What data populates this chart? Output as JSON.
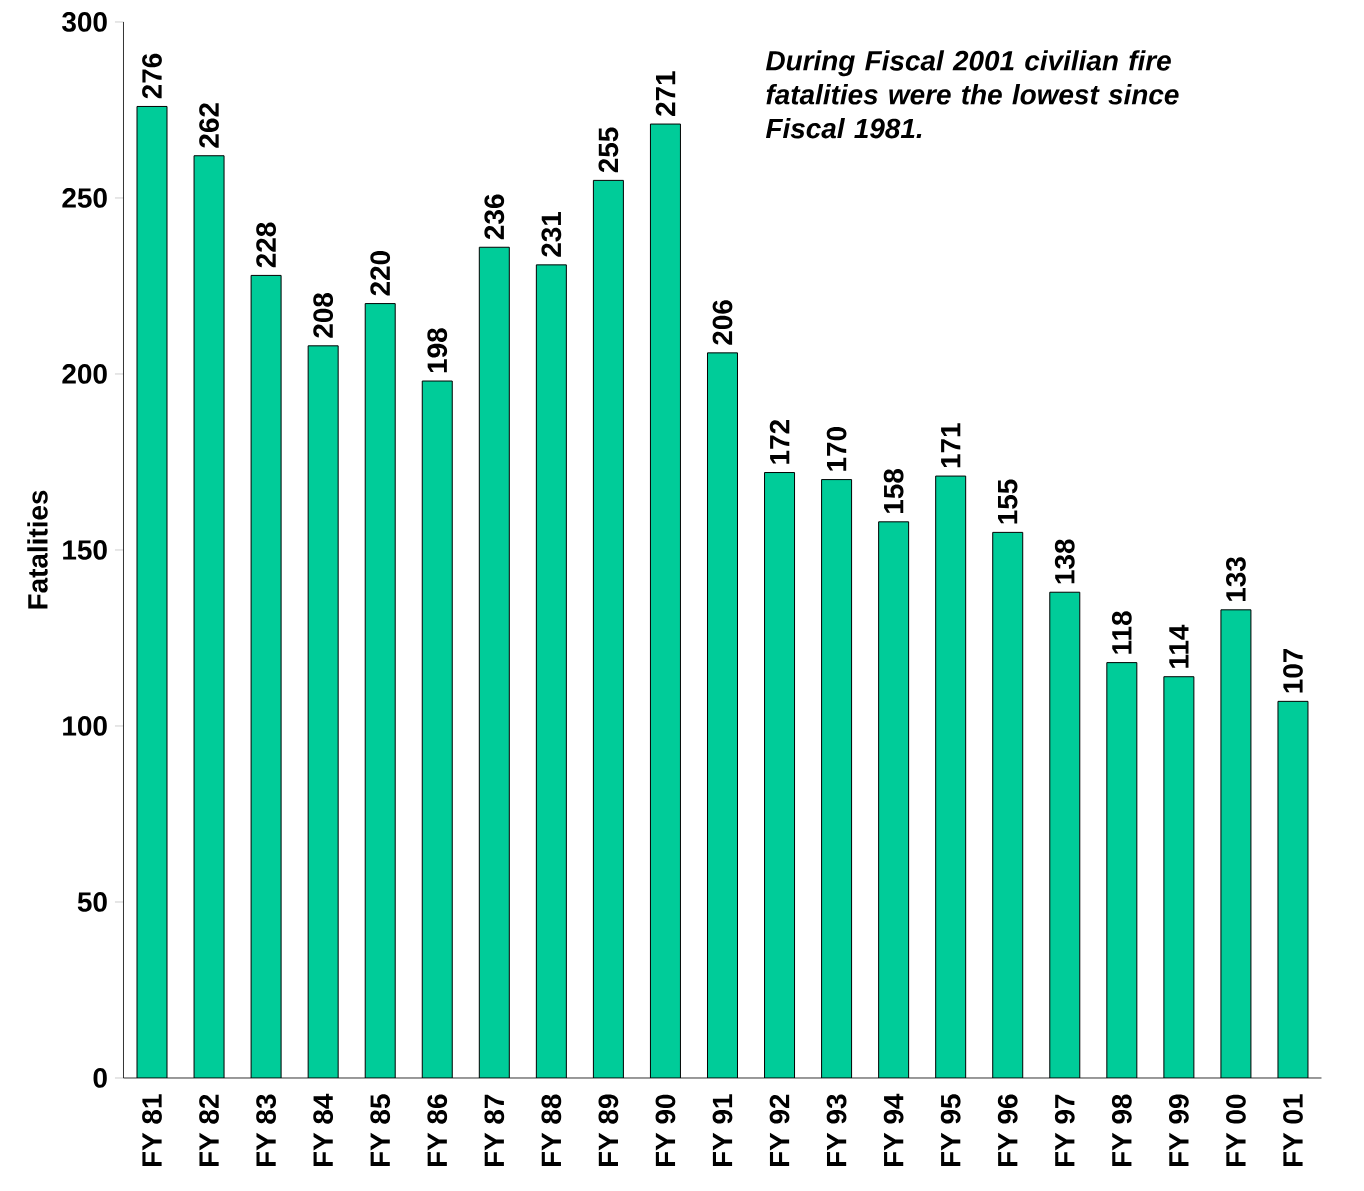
{
  "chart_data": {
    "type": "bar",
    "ylabel": "Fatalities",
    "categories": [
      "FY 81",
      "FY 82",
      "FY 83",
      "FY 84",
      "FY 85",
      "FY 86",
      "FY 87",
      "FY 88",
      "FY 89",
      "FY 90",
      "FY 91",
      "FY 92",
      "FY 93",
      "FY 94",
      "FY 95",
      "FY 96",
      "FY 97",
      "FY 98",
      "FY 99",
      "FY 00",
      "FY 01"
    ],
    "values": [
      276,
      262,
      228,
      208,
      220,
      198,
      236,
      231,
      255,
      271,
      206,
      172,
      170,
      158,
      171,
      155,
      138,
      118,
      114,
      133,
      107
    ],
    "color": "#00cc99",
    "ylim": [
      0,
      300
    ],
    "yticks": [
      0,
      50,
      100,
      150,
      200,
      250,
      300
    ],
    "data_labels": true,
    "annotations": [
      "During Fiscal 2001 civilian fire fatalities were the lowest since Fiscal 1981."
    ]
  }
}
